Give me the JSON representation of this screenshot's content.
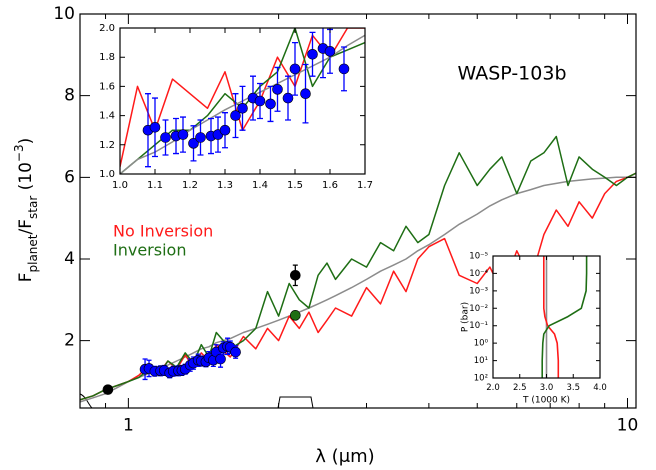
{
  "chart_data": [
    {
      "type": "line",
      "xlog": true,
      "xlim": [
        0.8,
        10.4
      ],
      "ylim": [
        0.35,
        10
      ],
      "xticks": [
        1,
        10
      ],
      "xminorticks": [
        0.9,
        2,
        3,
        4,
        5,
        6,
        7,
        8,
        9
      ],
      "yticks": [
        2,
        4,
        6,
        8,
        10
      ],
      "x_label": "λ (μm)",
      "y_label": [
        "F",
        "planet",
        "/F",
        "star",
        " (10",
        "−3",
        ")"
      ],
      "annotation": "WASP-103b",
      "legend": "center left",
      "x": [
        0.8,
        0.85,
        0.9,
        0.95,
        1.0,
        1.05,
        1.1,
        1.15,
        1.2,
        1.25,
        1.3,
        1.35,
        1.4,
        1.45,
        1.5,
        1.6,
        1.7,
        1.8,
        1.9,
        2.0,
        2.1,
        2.2,
        2.3,
        2.4,
        2.5,
        2.6,
        2.8,
        3.0,
        3.2,
        3.4,
        3.6,
        3.8,
        4.0,
        4.3,
        4.6,
        5.0,
        5.3,
        5.6,
        6.0,
        6.4,
        6.8,
        7.2,
        7.6,
        8.0,
        8.5,
        9.0,
        9.5,
        10.0,
        10.4
      ],
      "series": [
        {
          "type": "line",
          "color": "#8c8c8c",
          "values": [
            0.5,
            0.6,
            0.7,
            0.85,
            1.0,
            1.1,
            1.2,
            1.3,
            1.4,
            1.5,
            1.6,
            1.7,
            1.8,
            1.85,
            1.95,
            2.05,
            2.2,
            2.3,
            2.4,
            2.5,
            2.6,
            2.7,
            2.8,
            2.9,
            3.0,
            3.1,
            3.3,
            3.5,
            3.7,
            3.85,
            4.0,
            4.2,
            4.35,
            4.6,
            4.85,
            5.1,
            5.3,
            5.45,
            5.6,
            5.7,
            5.8,
            5.85,
            5.9,
            5.93,
            5.96,
            5.98,
            6.0,
            6.0,
            6.0
          ]
        },
        {
          "type": "line",
          "name": "No Inversion",
          "color": "#ff1a1a",
          "values": [
            0.55,
            0.65,
            0.8,
            0.9,
            1.0,
            1.15,
            1.4,
            1.2,
            1.5,
            1.3,
            1.65,
            1.35,
            1.7,
            1.5,
            1.9,
            1.6,
            2.1,
            1.8,
            2.3,
            2.0,
            2.6,
            2.3,
            2.7,
            2.2,
            2.5,
            2.8,
            2.6,
            3.3,
            2.9,
            3.7,
            3.2,
            4.0,
            4.3,
            4.5,
            3.6,
            3.4,
            3.8,
            3.2,
            4.2,
            3.5,
            4.6,
            5.2,
            4.8,
            5.4,
            5.0,
            5.6,
            5.9,
            6.0,
            6.1
          ]
        },
        {
          "type": "line",
          "name": "Inversion",
          "color": "#1e6e14",
          "values": [
            0.55,
            0.65,
            0.8,
            0.9,
            1.0,
            1.1,
            1.3,
            1.15,
            1.5,
            1.35,
            1.7,
            1.45,
            1.9,
            1.6,
            2.2,
            1.8,
            2.0,
            2.3,
            3.2,
            2.6,
            3.4,
            3.0,
            2.8,
            3.6,
            3.9,
            3.5,
            4.0,
            3.8,
            4.4,
            4.2,
            4.8,
            4.4,
            4.6,
            5.8,
            6.6,
            5.8,
            6.2,
            6.5,
            5.6,
            6.4,
            6.6,
            7.0,
            5.8,
            6.5,
            6.2,
            6.0,
            5.8,
            6.0,
            6.1
          ]
        },
        {
          "type": "points",
          "color": "#1e6e14",
          "x": [
            2.16
          ],
          "values": [
            2.62
          ]
        },
        {
          "type": "points",
          "color": "#000000",
          "x": [
            0.91,
            2.16
          ],
          "values": [
            0.8,
            3.6
          ],
          "errors": [
            0.05,
            0.25
          ]
        },
        {
          "type": "points",
          "color": "#0000ff",
          "x": [
            1.08,
            1.1,
            1.13,
            1.16,
            1.18,
            1.21,
            1.23,
            1.26,
            1.28,
            1.3,
            1.33,
            1.35,
            1.38,
            1.4,
            1.43,
            1.45,
            1.48,
            1.5,
            1.53,
            1.55,
            1.58,
            1.6,
            1.64
          ],
          "values": [
            1.3,
            1.32,
            1.25,
            1.26,
            1.27,
            1.21,
            1.25,
            1.26,
            1.27,
            1.3,
            1.4,
            1.45,
            1.52,
            1.5,
            1.48,
            1.58,
            1.52,
            1.72,
            1.55,
            1.82,
            1.86,
            1.84,
            1.72
          ],
          "errors": [
            0.25,
            0.2,
            0.12,
            0.12,
            0.12,
            0.12,
            0.12,
            0.12,
            0.12,
            0.12,
            0.15,
            0.15,
            0.15,
            0.12,
            0.12,
            0.15,
            0.15,
            0.18,
            0.2,
            0.15,
            0.2,
            0.15,
            0.15
          ]
        }
      ]
    },
    {
      "type": "line",
      "xlim": [
        1.0,
        1.7
      ],
      "ylim": [
        1.0,
        2.0
      ],
      "xticks": [
        {
          "value": 1,
          "label": "1.0"
        },
        1.1,
        1.2,
        1.3,
        1.4,
        1.5,
        1.6,
        1.7
      ],
      "yticks": [
        {
          "value": 1,
          "label": "1.0"
        },
        1.2,
        1.4,
        1.6,
        1.8,
        {
          "value": 2,
          "label": "2.0"
        }
      ],
      "x": [
        1.0,
        1.05,
        1.1,
        1.15,
        1.2,
        1.25,
        1.3,
        1.35,
        1.4,
        1.45,
        1.5,
        1.55,
        1.6,
        1.65,
        1.7
      ],
      "series": [
        {
          "type": "line",
          "color": "#ff1a1a",
          "values": [
            1.05,
            1.6,
            1.3,
            1.65,
            1.55,
            1.45,
            1.7,
            1.3,
            1.5,
            1.8,
            1.6,
            1.95,
            1.8,
            2.0,
            2.0
          ]
        },
        {
          "type": "line",
          "color": "#1e6e14",
          "values": [
            1.0,
            1.1,
            1.2,
            1.3,
            1.3,
            1.4,
            1.55,
            1.45,
            1.6,
            1.7,
            2.0,
            1.6,
            1.8,
            1.85,
            1.9
          ]
        },
        {
          "type": "line",
          "color": "#8c8c8c",
          "values": [
            1.0,
            1.1,
            1.15,
            1.22,
            1.3,
            1.37,
            1.44,
            1.5,
            1.56,
            1.62,
            1.68,
            1.74,
            1.8,
            1.88,
            1.95
          ]
        },
        {
          "type": "points",
          "color": "#0000ff",
          "x": [
            1.08,
            1.1,
            1.13,
            1.16,
            1.18,
            1.21,
            1.23,
            1.26,
            1.28,
            1.3,
            1.33,
            1.35,
            1.38,
            1.4,
            1.43,
            1.45,
            1.48,
            1.5,
            1.53,
            1.55,
            1.58,
            1.6,
            1.64
          ],
          "values": [
            1.3,
            1.32,
            1.25,
            1.26,
            1.27,
            1.21,
            1.25,
            1.26,
            1.27,
            1.3,
            1.4,
            1.45,
            1.52,
            1.5,
            1.48,
            1.58,
            1.52,
            1.72,
            1.55,
            1.82,
            1.86,
            1.84,
            1.72
          ],
          "errors": [
            0.25,
            0.2,
            0.12,
            0.12,
            0.12,
            0.12,
            0.12,
            0.12,
            0.12,
            0.12,
            0.15,
            0.15,
            0.15,
            0.12,
            0.12,
            0.15,
            0.15,
            0.18,
            0.2,
            0.15,
            0.2,
            0.15,
            0.15
          ]
        }
      ]
    },
    {
      "type": "line",
      "ylog": true,
      "xlim": [
        2.0,
        4.0
      ],
      "ylim": [
        100,
        1e-05
      ],
      "xticks": [
        {
          "value": 2,
          "label": "2.0"
        },
        2.5,
        {
          "value": 3,
          "label": "3.0"
        },
        3.5,
        {
          "value": 4,
          "label": "4.0"
        }
      ],
      "yticks": [
        {
          "value": 1e-05,
          "label": "10⁻⁵"
        },
        {
          "value": 0.0001,
          "label": "10⁻⁴"
        },
        {
          "value": 0.001,
          "label": "10⁻³"
        },
        {
          "value": 0.01,
          "label": "10⁻²"
        },
        {
          "value": 0.1,
          "label": "10⁻¹"
        },
        {
          "value": 1,
          "label": "10⁰"
        },
        {
          "value": 10,
          "label": "10¹"
        },
        {
          "value": 100,
          "label": "10²"
        }
      ],
      "x_label": "T (1000 K)",
      "y_label": "P (bar)",
      "series": [
        {
          "type": "line",
          "color": "#8c8c8c",
          "x": [
            3.0,
            3.0,
            3.0,
            3.0,
            3.0,
            3.0,
            3.0,
            3.0,
            3.0,
            3.0
          ],
          "y": [
            1e-05,
            0.0001,
            0.001,
            0.01,
            0.03,
            0.1,
            0.3,
            1,
            10,
            100
          ]
        },
        {
          "type": "line",
          "color": "#ff1a1a",
          "x": [
            2.95,
            2.95,
            2.95,
            2.95,
            2.97,
            3.02,
            3.15,
            3.2,
            3.22,
            3.22
          ],
          "y": [
            1e-05,
            0.0001,
            0.001,
            0.01,
            0.03,
            0.1,
            0.3,
            1,
            10,
            100
          ]
        },
        {
          "type": "line",
          "color": "#1e6e14",
          "x": [
            3.75,
            3.75,
            3.74,
            3.65,
            3.4,
            3.05,
            2.95,
            2.93,
            2.92,
            2.92
          ],
          "y": [
            1e-05,
            0.0001,
            0.001,
            0.01,
            0.03,
            0.1,
            0.3,
            1,
            10,
            100
          ]
        }
      ]
    }
  ]
}
